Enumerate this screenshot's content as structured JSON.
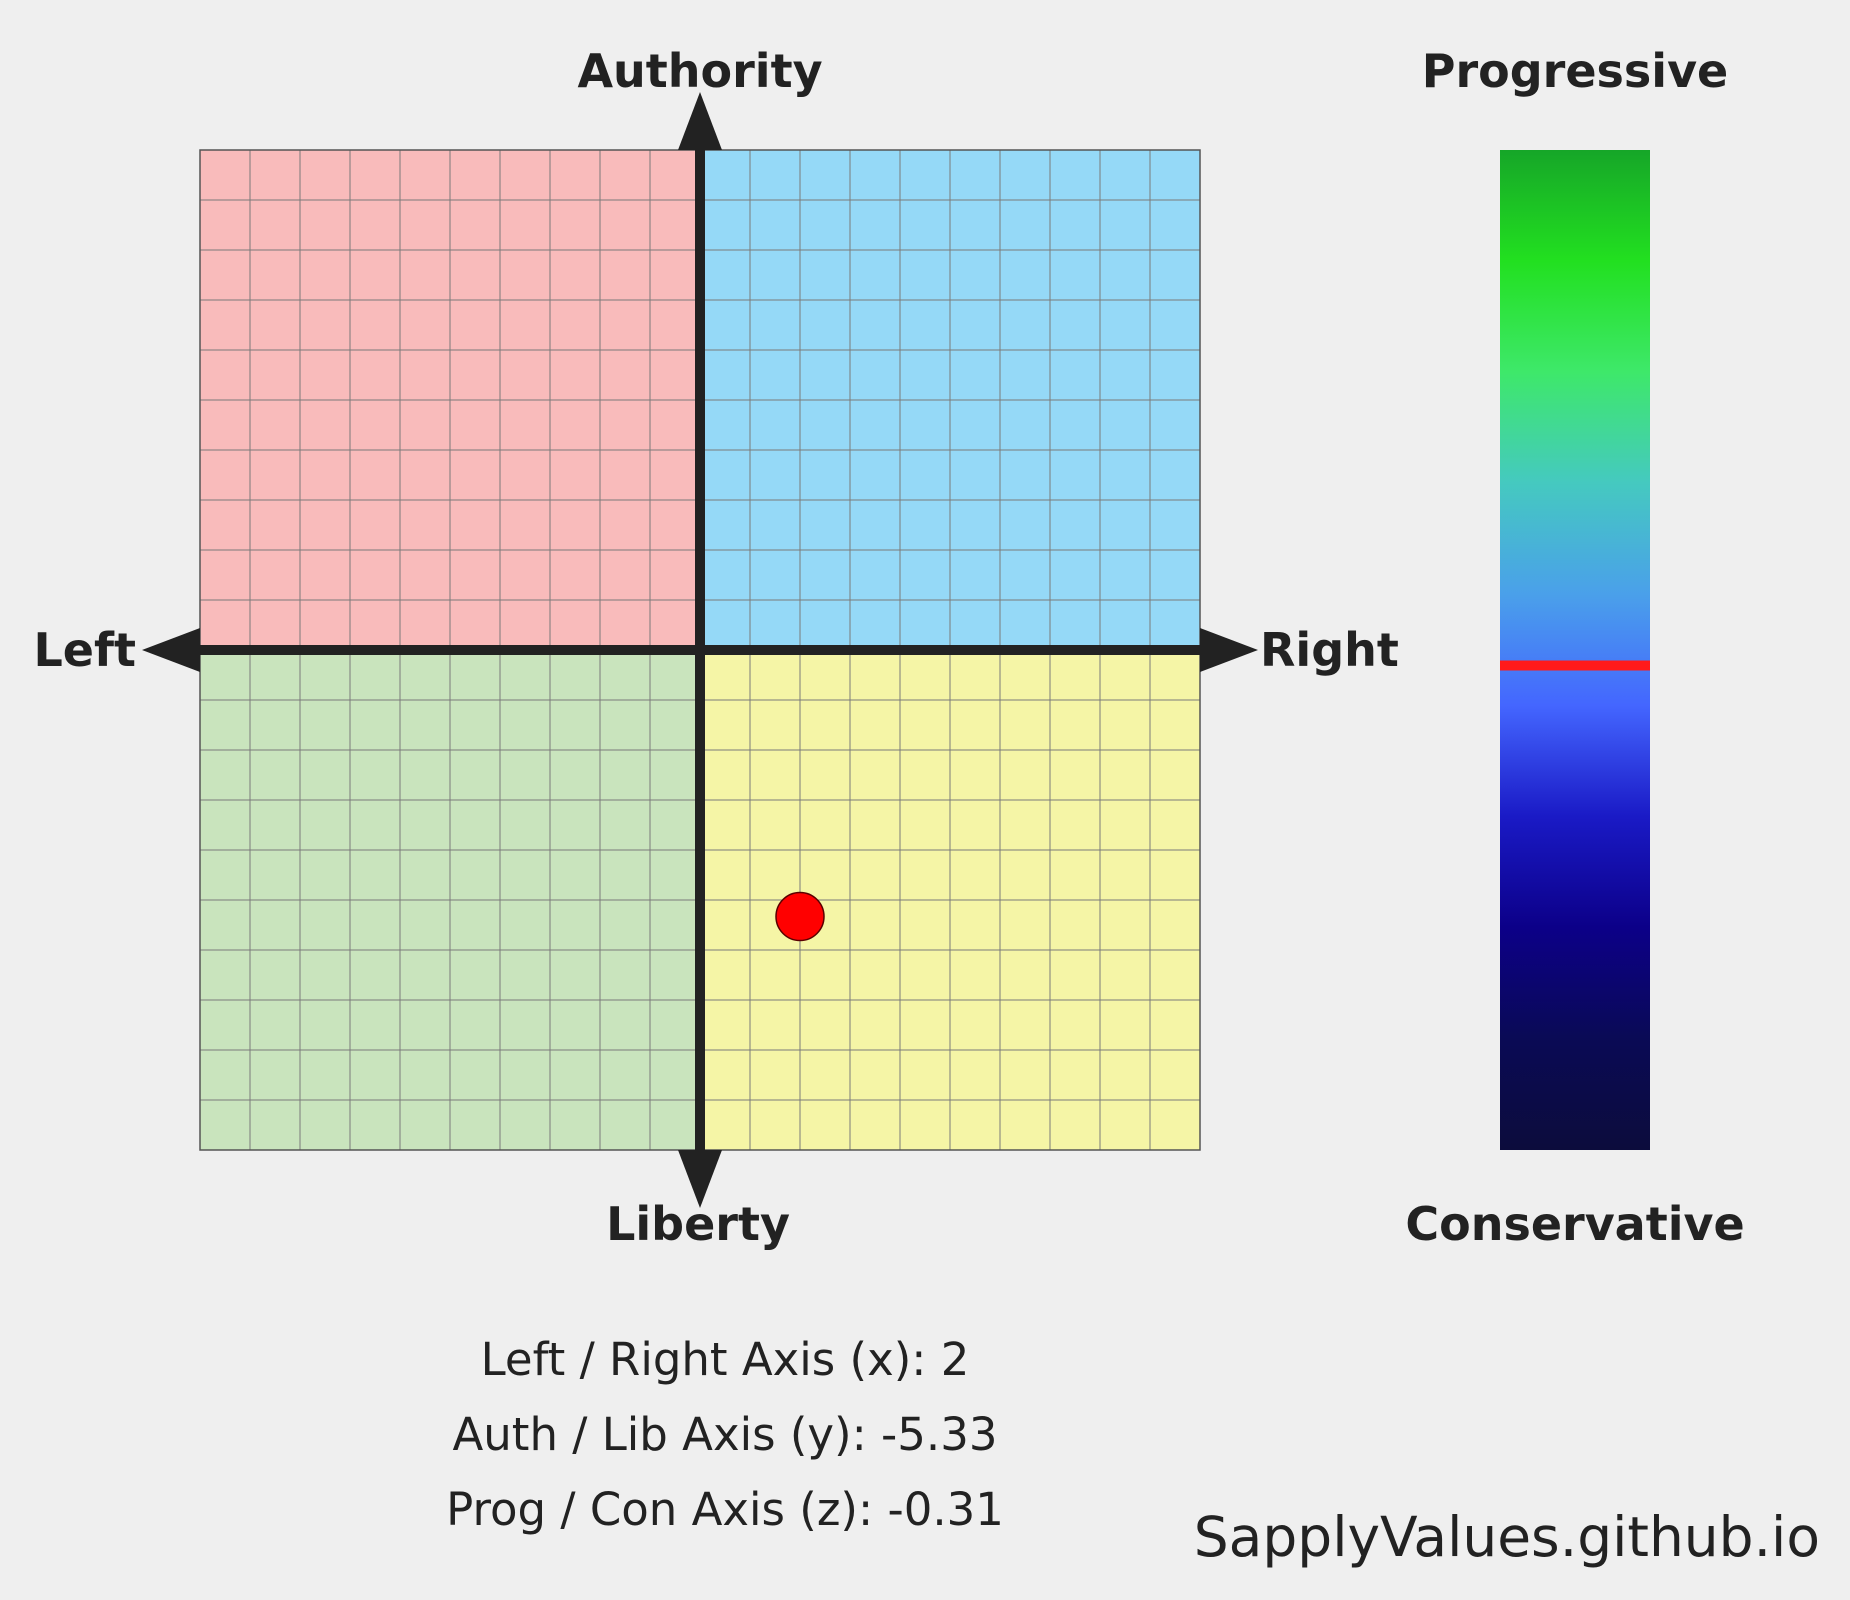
{
  "chart_data": [
    {
      "type": "scatter",
      "title": "",
      "axes": {
        "x": {
          "negative_label": "Left",
          "positive_label": "Right",
          "range": [
            -10,
            10
          ],
          "gridlines_every": 1
        },
        "y": {
          "positive_label": "Authority",
          "negative_label": "Liberty",
          "range": [
            -10,
            10
          ],
          "gridlines_every": 1
        }
      },
      "quadrants": {
        "top_left": "#f9bbbb",
        "top_right": "#95d9f7",
        "bottom_left": "#c9e4bd",
        "bottom_right": "#f5f5a6"
      },
      "grid": true,
      "points": [
        {
          "x": 2,
          "y": -5.33,
          "color": "#ff0000"
        }
      ]
    },
    {
      "type": "gauge",
      "title": "",
      "top_label": "Progressive",
      "bottom_label": "Conservative",
      "range": [
        -10,
        10
      ],
      "value": -0.31,
      "marker_color": "#ff1a1a",
      "gradient": [
        "#16a628",
        "#22e020",
        "#3ee86a",
        "#45c9c0",
        "#4aa0ea",
        "#4466ff",
        "#1a1ac6",
        "#0c0088",
        "#0a0a55",
        "#0c0c3c"
      ]
    }
  ],
  "readout": {
    "lines": [
      "Left / Right Axis (x): 2",
      "Auth / Lib Axis (y): -5.33",
      "Prog / Con Axis (z): -0.31"
    ]
  },
  "site": "SapplyValues.github.io"
}
